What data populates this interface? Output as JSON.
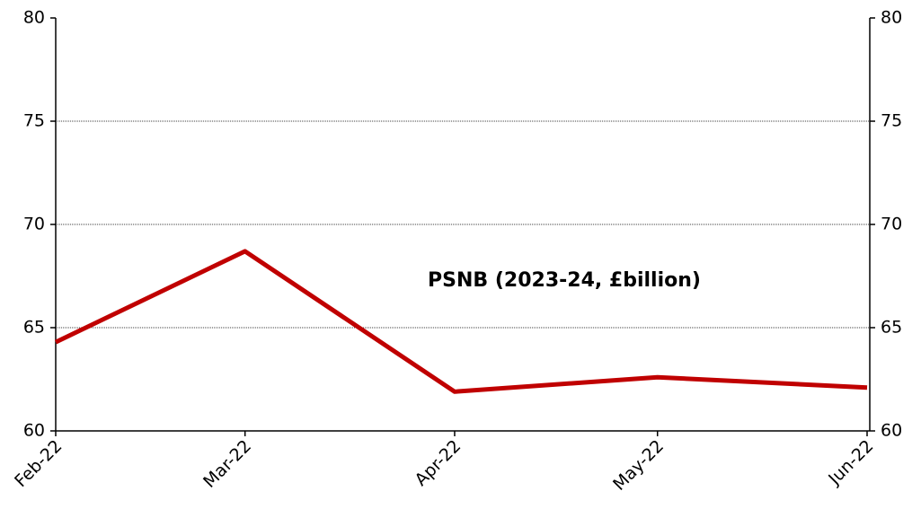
{
  "chart_data": {
    "type": "line",
    "annotation": "PSNB (2023-24, £billion)",
    "x": [
      "Feb-22",
      "Mar-22",
      "Apr-22",
      "May-22",
      "Jun-22"
    ],
    "series": [
      {
        "name": "PSNB (2023-24, £billion)",
        "color": "#c00000",
        "values": [
          64.3,
          68.7,
          61.9,
          62.6,
          62.1
        ]
      }
    ],
    "ylim": [
      60,
      80
    ],
    "yticks": [
      60,
      65,
      70,
      75,
      80
    ],
    "y2lim": [
      60,
      80
    ],
    "y2ticks": [
      60,
      65,
      70,
      75,
      80
    ],
    "grid": true
  }
}
